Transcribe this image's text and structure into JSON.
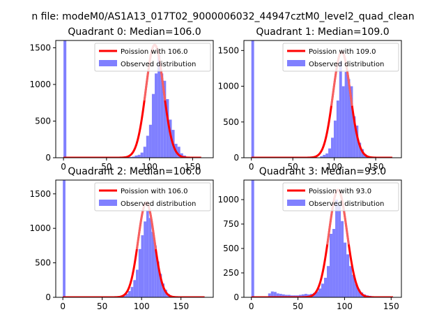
{
  "figure": {
    "suptitle": "n file: modeM0/AS1A13_017T02_9000006032_44947cztM0_level2_quad_clean"
  },
  "colors": {
    "fit_line": "#ff0000",
    "fit_line_peak": "#f28a8a",
    "histogram": "#8080ff",
    "axes": "#000000"
  },
  "chart_data": [
    {
      "type": "bar",
      "title": "Quadrant 0: Median=106.0",
      "median": 106.0,
      "xlim": [
        -9,
        174
      ],
      "ylim": [
        0,
        1600
      ],
      "xticks": [
        0,
        50,
        100,
        150
      ],
      "yticks": [
        0,
        500,
        1000,
        1500
      ],
      "grid": false,
      "legend_position": "top-right",
      "series": [
        {
          "name": "Poission with 106.0",
          "kind": "line",
          "mean": 106.0,
          "x_range": [
            0,
            160
          ]
        },
        {
          "name": "Observed distribution",
          "kind": "histogram",
          "bins": [
            [
              0,
              3.3,
              1600
            ],
            [
              73,
              76.3,
              5
            ],
            [
              76.3,
              79.6,
              10
            ],
            [
              79.6,
              82.9,
              15
            ],
            [
              82.9,
              86.2,
              30
            ],
            [
              86.2,
              89.5,
              40
            ],
            [
              89.5,
              92.8,
              70
            ],
            [
              92.8,
              96.1,
              150
            ],
            [
              96.1,
              99.4,
              300
            ],
            [
              99.4,
              102.7,
              450
            ],
            [
              102.7,
              106,
              870
            ],
            [
              106,
              109.3,
              1150
            ],
            [
              109.3,
              112.6,
              1400
            ],
            [
              112.6,
              115.9,
              1150
            ],
            [
              115.9,
              119.2,
              1050
            ],
            [
              119.2,
              122.5,
              800
            ],
            [
              122.5,
              125.8,
              520
            ],
            [
              125.8,
              129.1,
              380
            ],
            [
              129.1,
              132.4,
              190
            ],
            [
              132.4,
              135.7,
              150
            ],
            [
              135.7,
              139,
              60
            ],
            [
              139,
              142.3,
              30
            ],
            [
              142.3,
              145.6,
              12
            ],
            [
              145.6,
              148.9,
              5
            ]
          ]
        }
      ]
    },
    {
      "type": "bar",
      "title": "Quadrant 1: Median=109.0",
      "median": 109.0,
      "xlim": [
        -9,
        181
      ],
      "ylim": [
        0,
        1640
      ],
      "xticks": [
        0,
        50,
        100,
        150
      ],
      "yticks": [
        0,
        500,
        1000,
        1500
      ],
      "grid": false,
      "legend_position": "top-right",
      "series": [
        {
          "name": "Poission with 109.0",
          "kind": "line",
          "mean": 109.0,
          "x_range": [
            0,
            170
          ]
        },
        {
          "name": "Observed distribution",
          "kind": "histogram",
          "bins": [
            [
              0,
              3.3,
              1640
            ],
            [
              82.9,
              86.2,
              20
            ],
            [
              86.2,
              89.5,
              40
            ],
            [
              89.5,
              92.8,
              60
            ],
            [
              92.8,
              96.1,
              130
            ],
            [
              96.1,
              99.4,
              280
            ],
            [
              99.4,
              102.7,
              520
            ],
            [
              102.7,
              106,
              800
            ],
            [
              106,
              109.3,
              1350
            ],
            [
              109.3,
              112.6,
              1000
            ],
            [
              112.6,
              115.9,
              1200
            ],
            [
              115.9,
              119.2,
              1100
            ],
            [
              119.2,
              122.5,
              1000
            ],
            [
              122.5,
              125.8,
              580
            ],
            [
              125.8,
              129.1,
              450
            ],
            [
              129.1,
              132.4,
              210
            ],
            [
              132.4,
              135.7,
              120
            ],
            [
              135.7,
              139,
              50
            ],
            [
              139,
              142.3,
              25
            ],
            [
              142.3,
              145.6,
              15
            ]
          ]
        }
      ]
    },
    {
      "type": "bar",
      "title": "Quadrant 2: Median=106.0",
      "median": 106.0,
      "xlim": [
        -9,
        191
      ],
      "ylim": [
        0,
        1700
      ],
      "xticks": [
        0,
        50,
        100,
        150
      ],
      "yticks": [
        0,
        500,
        1000,
        1500
      ],
      "grid": false,
      "legend_position": "top-right",
      "series": [
        {
          "name": "Poission with 106.0",
          "kind": "line",
          "mean": 106.0,
          "x_range": [
            0,
            180
          ]
        },
        {
          "name": "Observed distribution",
          "kind": "histogram",
          "bins": [
            [
              0,
              3.3,
              1700
            ],
            [
              69.7,
              73,
              5
            ],
            [
              73,
              76.3,
              10
            ],
            [
              76.3,
              79.6,
              20
            ],
            [
              79.6,
              82.9,
              50
            ],
            [
              82.9,
              86.2,
              90
            ],
            [
              86.2,
              89.5,
              150
            ],
            [
              89.5,
              92.8,
              250
            ],
            [
              92.8,
              96.1,
              400
            ],
            [
              96.1,
              99.4,
              700
            ],
            [
              99.4,
              102.7,
              900
            ],
            [
              102.7,
              106,
              1100
            ],
            [
              106,
              109.3,
              1250
            ],
            [
              109.3,
              112.6,
              1150
            ],
            [
              112.6,
              115.9,
              950
            ],
            [
              115.9,
              119.2,
              750
            ],
            [
              119.2,
              122.5,
              520
            ],
            [
              122.5,
              125.8,
              340
            ],
            [
              125.8,
              129.1,
              200
            ],
            [
              129.1,
              132.4,
              110
            ],
            [
              132.4,
              135.7,
              50
            ],
            [
              135.7,
              139,
              20
            ],
            [
              139,
              142.3,
              10
            ],
            [
              142.3,
              145.6,
              5
            ]
          ]
        }
      ]
    },
    {
      "type": "bar",
      "title": "Quadrant 3: Median=93.0",
      "median": 93.0,
      "xlim": [
        -8,
        161
      ],
      "ylim": [
        0,
        1200
      ],
      "xticks": [
        0,
        50,
        100,
        150
      ],
      "yticks": [
        0,
        250,
        500,
        750,
        1000
      ],
      "grid": false,
      "legend_position": "top-right",
      "series": [
        {
          "name": "Poission with 93.0",
          "kind": "line",
          "mean": 93.0,
          "x_range": [
            0,
            152
          ]
        },
        {
          "name": "Observed distribution",
          "kind": "histogram",
          "bins": [
            [
              0,
              3,
              1200
            ],
            [
              18,
              21,
              40
            ],
            [
              21,
              24,
              60
            ],
            [
              24,
              27,
              55
            ],
            [
              27,
              30,
              40
            ],
            [
              30,
              33,
              35
            ],
            [
              33,
              36,
              30
            ],
            [
              36,
              39,
              25
            ],
            [
              39,
              42,
              25
            ],
            [
              42,
              45,
              20
            ],
            [
              45,
              48,
              20
            ],
            [
              48,
              51,
              20
            ],
            [
              51,
              54,
              25
            ],
            [
              54,
              57,
              30
            ],
            [
              57,
              60,
              35
            ],
            [
              60,
              63,
              30
            ],
            [
              63,
              66,
              35
            ],
            [
              66,
              69,
              45
            ],
            [
              69,
              72,
              60
            ],
            [
              72,
              75,
              90
            ],
            [
              75,
              78,
              140
            ],
            [
              78,
              81,
              200
            ],
            [
              81,
              84,
              320
            ],
            [
              84,
              87,
              650
            ],
            [
              87,
              90,
              700
            ],
            [
              90,
              93,
              1000
            ],
            [
              93,
              96,
              950
            ],
            [
              96,
              99,
              780
            ],
            [
              99,
              102,
              560
            ],
            [
              102,
              105,
              440
            ],
            [
              105,
              108,
              320
            ],
            [
              108,
              111,
              230
            ],
            [
              111,
              114,
              140
            ],
            [
              114,
              117,
              80
            ],
            [
              117,
              120,
              50
            ],
            [
              120,
              123,
              30
            ],
            [
              123,
              126,
              20
            ],
            [
              126,
              129,
              15
            ],
            [
              129,
              132,
              10
            ],
            [
              132,
              135,
              8
            ],
            [
              135,
              138,
              5
            ]
          ]
        }
      ]
    }
  ]
}
